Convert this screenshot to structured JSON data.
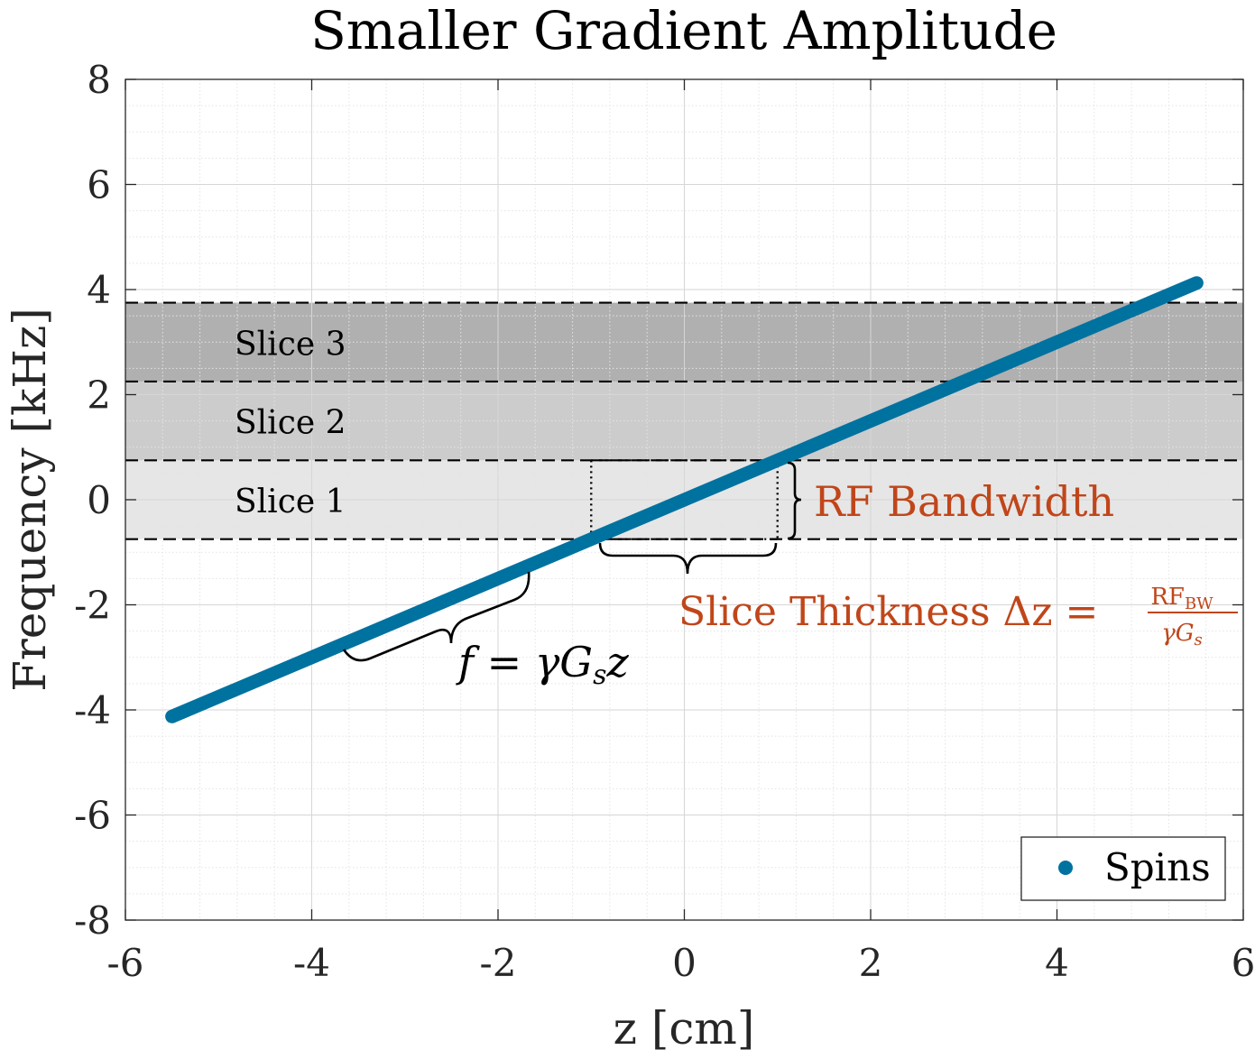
{
  "chart_data": {
    "type": "scatter",
    "title": "Smaller Gradient Amplitude",
    "xlabel": "z [cm]",
    "ylabel": "Frequency [kHz]",
    "xlim": [
      -6,
      6
    ],
    "ylim": [
      -8,
      8
    ],
    "xticks": [
      "-6",
      "-4",
      "-2",
      "0",
      "2",
      "4",
      "6"
    ],
    "yticks": [
      "8",
      "6",
      "4",
      "2",
      "0",
      "-2",
      "-4",
      "-6",
      "-8"
    ],
    "grid": true,
    "minor_grid": true,
    "legend": {
      "placement": "bottom-right",
      "entries": [
        "Spins"
      ]
    },
    "series": [
      {
        "name": "Spins",
        "color": "#0072a0",
        "x_range": [
          -5.5,
          5.5
        ],
        "slope": 0.75,
        "intercept": 0
      }
    ],
    "slices": [
      {
        "label": "Slice 1",
        "range": [
          -0.75,
          0.75
        ],
        "color": "#e6e6e6"
      },
      {
        "label": "Slice 2",
        "range": [
          0.75,
          2.25
        ],
        "color": "#cccccc"
      },
      {
        "label": "Slice 3",
        "range": [
          2.25,
          3.75
        ],
        "color": "#b0b0b0"
      }
    ],
    "annotations": {
      "rf_bandwidth": {
        "text": "RF Bandwidth",
        "color": "#c0461a"
      },
      "slice_thickness": {
        "text": "Slice Thickness Δz = ",
        "frac_num": "RF",
        "frac_num_sub": "BW",
        "frac_den": "γG",
        "frac_den_sub": "s",
        "color": "#c0461a"
      },
      "formula": {
        "text_f": "f",
        "text_eq": " = γG",
        "text_sub": "s",
        "text_z": "z"
      }
    }
  }
}
